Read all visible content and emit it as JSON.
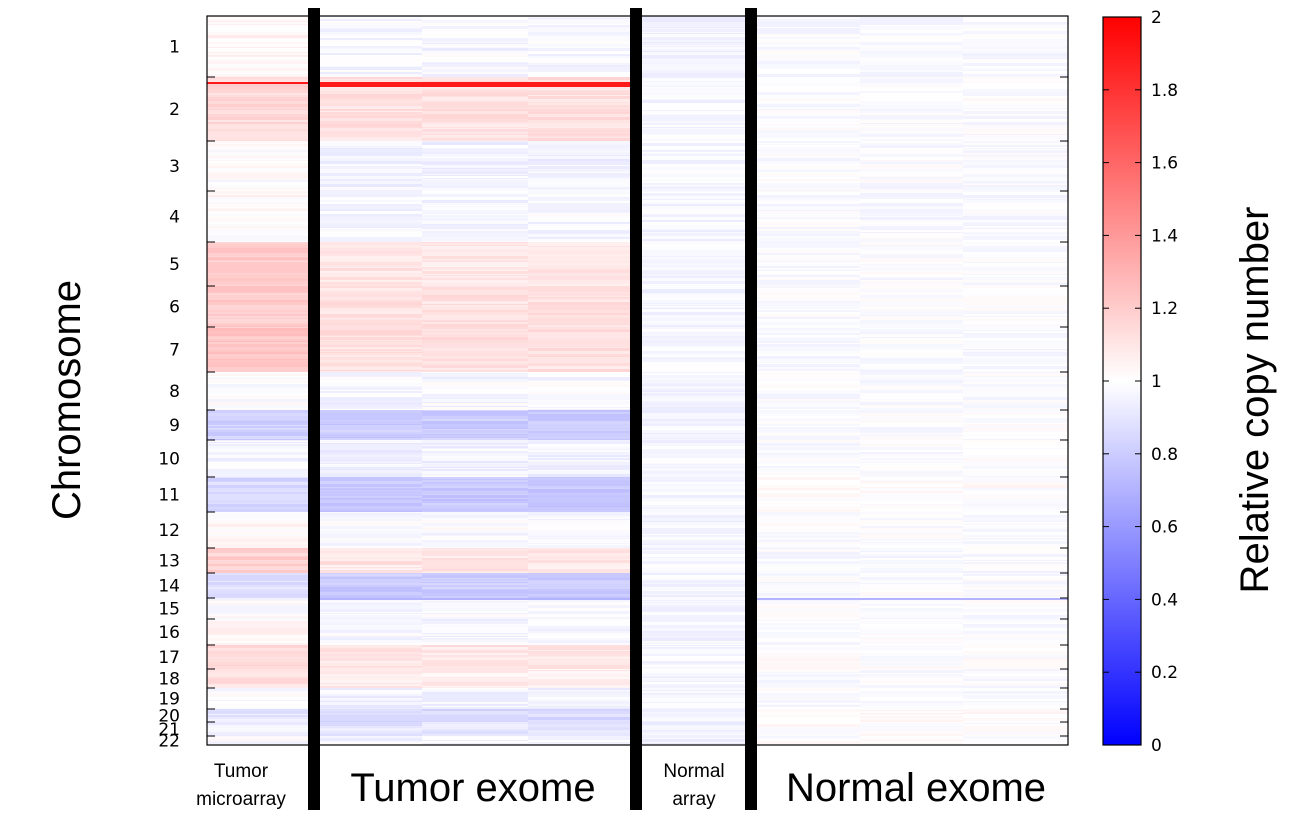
{
  "chart_data": {
    "type": "heatmap",
    "title": "",
    "ylabel": "Chromosome",
    "colorbar": {
      "label": "Relative copy number",
      "range": [
        0,
        2
      ],
      "ticks": [
        "0",
        "0.2",
        "0.4",
        "0.6",
        "0.8",
        "1",
        "1.2",
        "1.4",
        "1.6",
        "1.8",
        "2"
      ],
      "colors": {
        "low": "#0000ff",
        "mid": "#ffffff",
        "high": "#ff0000"
      }
    },
    "chromosomes": [
      "1",
      "2",
      "3",
      "4",
      "5",
      "6",
      "7",
      "8",
      "9",
      "10",
      "11",
      "12",
      "13",
      "14",
      "15",
      "16",
      "17",
      "18",
      "19",
      "20",
      "21",
      "22"
    ],
    "groups": [
      {
        "label": "Tumor microarray",
        "columns": 1
      },
      {
        "label": "Tumor exome",
        "columns": 3
      },
      {
        "label": "Normal array",
        "columns": 1
      },
      {
        "label": "Normal exome",
        "columns": 3
      }
    ],
    "values_by_chromosome": {
      "Tumor microarray": [
        1.03,
        1.15,
        1.0,
        1.02,
        1.2,
        1.2,
        1.22,
        1.0,
        0.82,
        0.97,
        0.85,
        1.02,
        1.18,
        0.88,
        1.0,
        1.03,
        1.15,
        1.12,
        1.0,
        0.9,
        0.95,
        1.0
      ],
      "Tumor exome": [
        0.97,
        1.12,
        0.95,
        0.97,
        1.1,
        1.12,
        1.12,
        0.97,
        0.8,
        0.95,
        0.78,
        0.98,
        1.1,
        0.8,
        0.98,
        0.97,
        1.1,
        1.07,
        0.95,
        0.85,
        0.9,
        0.97
      ],
      "Normal array": [
        0.95,
        0.97,
        0.97,
        0.96,
        0.97,
        0.96,
        0.97,
        0.96,
        0.96,
        0.97,
        0.96,
        0.96,
        0.97,
        0.96,
        0.96,
        0.96,
        0.97,
        0.96,
        0.96,
        0.95,
        0.95,
        0.95
      ],
      "Normal exome": [
        0.98,
        0.99,
        0.99,
        0.98,
        0.99,
        0.99,
        0.98,
        0.99,
        0.99,
        0.99,
        1.01,
        0.99,
        0.98,
        0.99,
        0.99,
        0.99,
        1.0,
        0.99,
        0.99,
        1.03,
        1.0,
        1.0
      ]
    },
    "focal_events": [
      {
        "chromosome": "2",
        "groups": [
          "Tumor microarray",
          "Tumor exome"
        ],
        "value": 1.9
      },
      {
        "chromosome": "14",
        "groups": [
          "Tumor exome",
          "Normal exome"
        ],
        "value": 0.7
      }
    ]
  }
}
